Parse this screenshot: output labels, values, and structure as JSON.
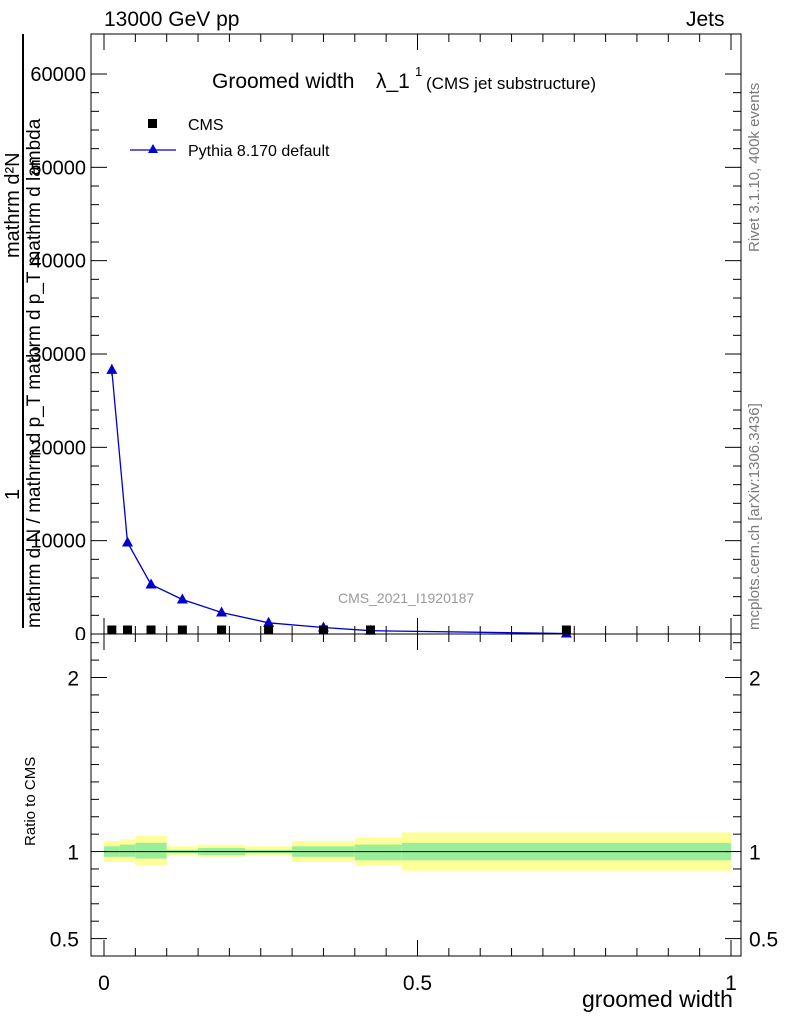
{
  "header": {
    "left": "13000 GeV pp",
    "right": "Jets"
  },
  "side_labels": {
    "top": "Rivet 3.1.10,  400k events",
    "bottom": "mcplots.cern.ch [arXiv:1306.3436]"
  },
  "watermark": "CMS_2021_I1920187",
  "colors": {
    "mc_line": "#0000cc",
    "data_marker": "#000000",
    "band_inner": "#99ee99",
    "band_outer": "#ffff99"
  },
  "chart_data": [
    {
      "type": "line",
      "title": "Groomed width",
      "title_symbol": "λ_1",
      "title_superscript": "1",
      "subtitle": "(CMS jet substructure)",
      "ylabel_top": "mathrm d²N",
      "ylabel_frac_line": "1",
      "ylabel_bottom": "mathrm d N / mathrm d p_T mathrm d p_T mathrm d lambda",
      "xlim": [
        0,
        1
      ],
      "ylim": [
        0,
        60000
      ],
      "yticks": [
        0,
        10000,
        20000,
        30000,
        40000,
        50000,
        60000
      ],
      "grid": false,
      "legend_position": "top-left",
      "legend": [
        "CMS",
        "Pythia 8.170 default"
      ],
      "series": [
        {
          "name": "CMS",
          "marker": "square",
          "x": [
            0.0125,
            0.0375,
            0.075,
            0.125,
            0.1875,
            0.2625,
            0.35,
            0.425,
            0.7375
          ],
          "y": [
            120,
            90,
            70,
            55,
            40,
            28,
            18,
            12,
            50
          ]
        },
        {
          "name": "Pythia 8.170 default",
          "marker": "triangle",
          "x": [
            0.0125,
            0.0375,
            0.075,
            0.125,
            0.1875,
            0.2625,
            0.35,
            0.425,
            0.7375
          ],
          "y": [
            28300,
            9800,
            5300,
            3700,
            2300,
            1200,
            700,
            350,
            50
          ],
          "yerr": [
            600,
            0,
            0,
            0,
            0,
            0,
            0,
            0,
            0
          ]
        }
      ]
    },
    {
      "type": "area",
      "ylabel": "Ratio to CMS",
      "xlabel": "groomed width",
      "xlim": [
        0,
        1
      ],
      "ylim": [
        0.4,
        2.25
      ],
      "yticks": [
        0.5,
        1,
        2
      ],
      "ytick_labels": [
        "0.5",
        "1",
        "2"
      ],
      "xticks": [
        0,
        0.5,
        1
      ],
      "xtick_labels": [
        "0",
        "0.5",
        "1"
      ],
      "reference_line": 1,
      "bins": [
        {
          "x0": 0.0,
          "x1": 0.025,
          "inner": [
            0.97,
            1.03
          ],
          "outer": [
            0.94,
            1.06
          ]
        },
        {
          "x0": 0.025,
          "x1": 0.05,
          "inner": [
            0.97,
            1.04
          ],
          "outer": [
            0.94,
            1.07
          ]
        },
        {
          "x0": 0.05,
          "x1": 0.1,
          "inner": [
            0.96,
            1.05
          ],
          "outer": [
            0.92,
            1.09
          ]
        },
        {
          "x0": 0.1,
          "x1": 0.15,
          "inner": [
            0.99,
            1.01
          ],
          "outer": [
            0.98,
            1.03
          ]
        },
        {
          "x0": 0.15,
          "x1": 0.225,
          "inner": [
            0.98,
            1.02
          ],
          "outer": [
            0.97,
            1.04
          ]
        },
        {
          "x0": 0.225,
          "x1": 0.3,
          "inner": [
            0.99,
            1.01
          ],
          "outer": [
            0.98,
            1.03
          ]
        },
        {
          "x0": 0.3,
          "x1": 0.4,
          "inner": [
            0.97,
            1.03
          ],
          "outer": [
            0.94,
            1.06
          ]
        },
        {
          "x0": 0.4,
          "x1": 0.475,
          "inner": [
            0.95,
            1.04
          ],
          "outer": [
            0.92,
            1.08
          ]
        },
        {
          "x0": 0.475,
          "x1": 1.0,
          "inner": [
            0.95,
            1.05
          ],
          "outer": [
            0.89,
            1.11
          ]
        }
      ]
    }
  ]
}
